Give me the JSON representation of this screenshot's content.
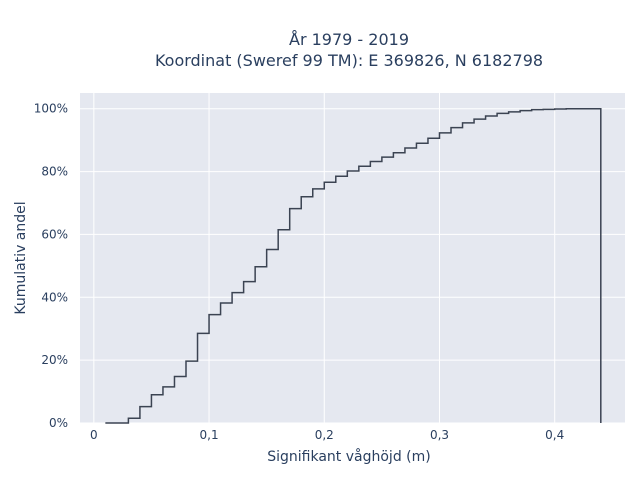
{
  "chart_data": {
    "type": "line",
    "title_lines": [
      "År 1979 - 2019",
      "Koordinat (Sweref 99 TM): E 369826, N 6182798"
    ],
    "xlabel": "Signifikant våghöjd (m)",
    "ylabel": "Kumulativ andel",
    "xlim": [
      -0.012,
      0.461
    ],
    "ylim": [
      0,
      1.05
    ],
    "x_ticks": [
      0,
      0.1,
      0.2,
      0.3,
      0.4
    ],
    "x_tick_labels": [
      "0",
      "0,1",
      "0,2",
      "0,3",
      "0,4"
    ],
    "y_ticks": [
      0,
      0.2,
      0.4,
      0.6,
      0.8,
      1.0
    ],
    "y_tick_labels": [
      "0%",
      "20%",
      "40%",
      "60%",
      "80%",
      "100%"
    ],
    "grid": true,
    "series": [
      {
        "step": "hv",
        "color": "#3b4352",
        "x": [
          0.01,
          0.02,
          0.03,
          0.04,
          0.05,
          0.06,
          0.07,
          0.08,
          0.09,
          0.1,
          0.11,
          0.12,
          0.13,
          0.14,
          0.15,
          0.16,
          0.17,
          0.18,
          0.19,
          0.2,
          0.21,
          0.22,
          0.23,
          0.24,
          0.25,
          0.26,
          0.27,
          0.28,
          0.29,
          0.3,
          0.31,
          0.32,
          0.33,
          0.34,
          0.35,
          0.36,
          0.37,
          0.38,
          0.39,
          0.4,
          0.41,
          0.42,
          0.43,
          0.44,
          0.44
        ],
        "y": [
          0.0,
          0.0,
          0.015,
          0.052,
          0.09,
          0.115,
          0.148,
          0.197,
          0.285,
          0.345,
          0.382,
          0.415,
          0.45,
          0.497,
          0.552,
          0.615,
          0.682,
          0.72,
          0.745,
          0.766,
          0.785,
          0.802,
          0.817,
          0.832,
          0.846,
          0.86,
          0.875,
          0.89,
          0.906,
          0.923,
          0.94,
          0.955,
          0.967,
          0.977,
          0.985,
          0.99,
          0.994,
          0.997,
          0.998,
          0.999,
          1.0,
          1.0,
          1.0,
          1.0,
          0.0
        ]
      }
    ]
  }
}
